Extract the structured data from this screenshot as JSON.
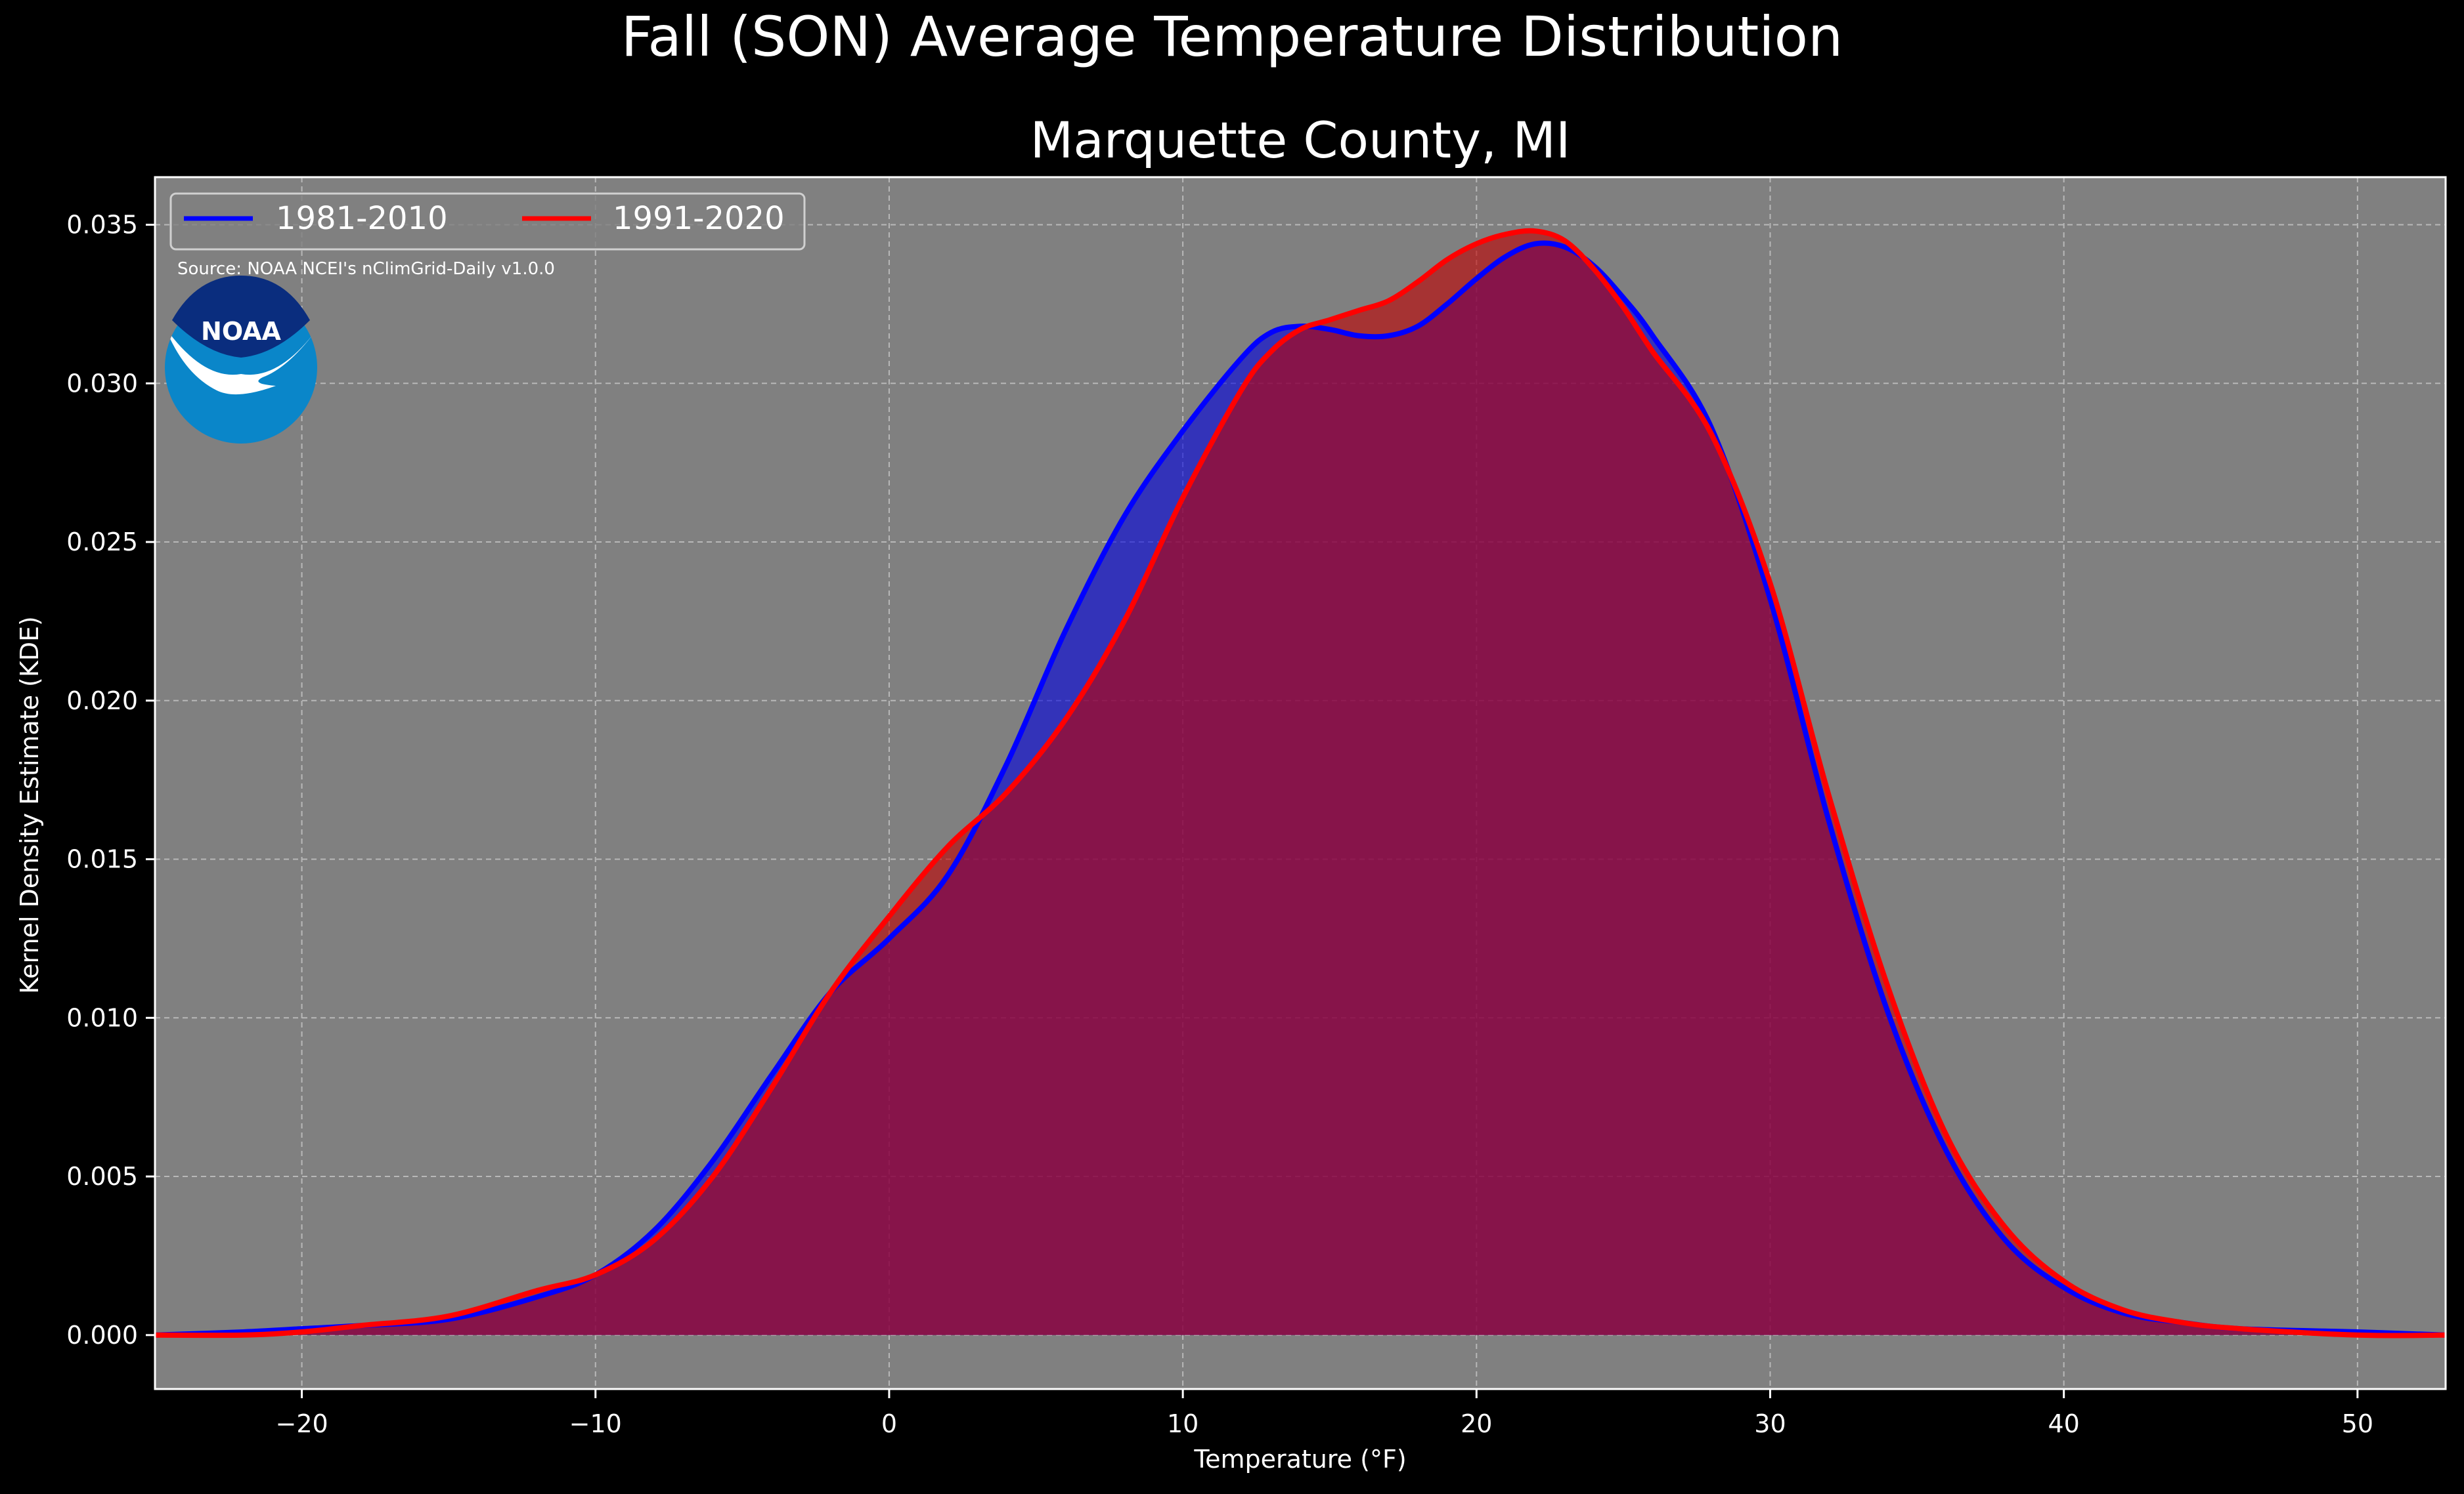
{
  "chart_data": {
    "type": "area",
    "suptitle": "Fall (SON) Average Temperature Distribution",
    "title": "Marquette County, MI",
    "xlabel": "Temperature ($^\\circ$F)",
    "ylabel": "Kernel Density Estimate (KDE)",
    "xlim": [
      -25,
      53
    ],
    "ylim": [
      -0.0017,
      0.0365
    ],
    "xticks": [
      -20,
      -10,
      0,
      10,
      20,
      30,
      40,
      50
    ],
    "xtick_labels": [
      "−20",
      "−10",
      "0",
      "10",
      "20",
      "30",
      "40",
      "50"
    ],
    "yticks": [
      0.0,
      0.005,
      0.01,
      0.015,
      0.02,
      0.025,
      0.03,
      0.035
    ],
    "ytick_labels": [
      "0.000",
      "0.005",
      "0.010",
      "0.015",
      "0.020",
      "0.025",
      "0.030",
      "0.035"
    ],
    "grid": true,
    "legend_position": "top-left",
    "annotation": "Source: NOAA NCEI's nClimGrid-Daily v1.0.0",
    "logo_text": "NOAA",
    "colors": {
      "background": "#000000",
      "axes_face": "#808080",
      "series_1": "#0000ff",
      "series_2": "#ff0000",
      "overlap": "#9c1f5e"
    },
    "series": [
      {
        "name": "1981-2010",
        "color": "#0000ff",
        "x": [
          -25,
          -22,
          -20,
          -18,
          -15,
          -12,
          -10,
          -8,
          -6,
          -4,
          -2,
          0,
          2,
          4,
          6,
          8,
          10,
          12,
          13,
          14,
          15,
          16,
          17,
          18,
          19,
          20,
          21,
          22,
          23,
          24,
          25,
          26,
          28,
          30,
          32,
          34,
          36,
          38,
          40,
          42,
          44,
          46,
          50,
          53
        ],
        "y": [
          0.0,
          0.0001,
          0.0002,
          0.0003,
          0.0005,
          0.0012,
          0.0019,
          0.0033,
          0.0055,
          0.0082,
          0.0108,
          0.0125,
          0.0145,
          0.018,
          0.0222,
          0.0258,
          0.0285,
          0.0308,
          0.0316,
          0.0318,
          0.0317,
          0.0315,
          0.0315,
          0.0318,
          0.0325,
          0.0333,
          0.034,
          0.0344,
          0.0343,
          0.0337,
          0.0327,
          0.0315,
          0.0286,
          0.0232,
          0.0162,
          0.0102,
          0.0058,
          0.003,
          0.0015,
          0.0007,
          0.0004,
          0.0002,
          0.0001,
          0.0
        ]
      },
      {
        "name": "1991-2020",
        "color": "#ff0000",
        "x": [
          -25,
          -22,
          -20,
          -18,
          -15,
          -12,
          -10,
          -8,
          -6,
          -4,
          -2,
          0,
          2,
          4,
          6,
          8,
          10,
          12,
          13,
          14,
          15,
          16,
          17,
          18,
          19,
          20,
          21,
          22,
          23,
          24,
          25,
          26,
          28,
          30,
          32,
          34,
          36,
          38,
          40,
          42,
          44,
          46,
          50,
          53
        ],
        "y": [
          0.0,
          0.0,
          0.0001,
          0.0003,
          0.0006,
          0.0014,
          0.0019,
          0.003,
          0.005,
          0.0078,
          0.0108,
          0.0132,
          0.0154,
          0.0171,
          0.0194,
          0.0225,
          0.0264,
          0.0298,
          0.031,
          0.0317,
          0.032,
          0.0323,
          0.0326,
          0.0332,
          0.0339,
          0.0344,
          0.0347,
          0.0348,
          0.0345,
          0.0336,
          0.0324,
          0.031,
          0.0284,
          0.0237,
          0.017,
          0.011,
          0.0063,
          0.0034,
          0.0017,
          0.0008,
          0.0004,
          0.0002,
          0.0,
          0.0
        ]
      }
    ]
  }
}
